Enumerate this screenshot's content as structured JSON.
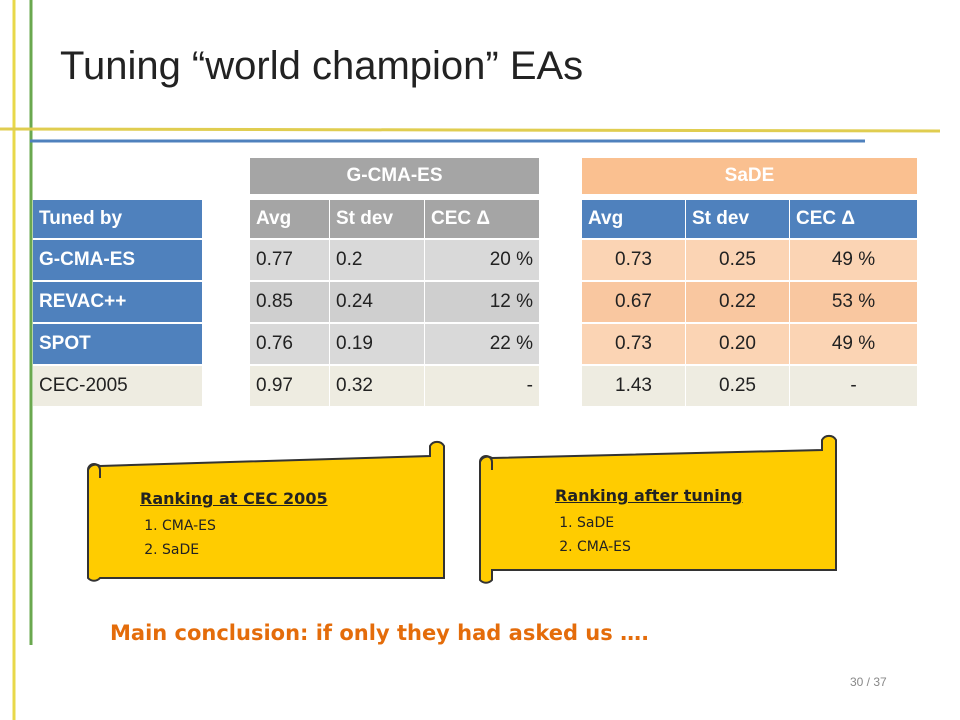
{
  "title": "Tuning “world champion” EAs",
  "tuned_by": {
    "header": "Tuned by",
    "rows": [
      "G-CMA-ES",
      "REVAC++",
      "SPOT",
      "CEC-2005"
    ]
  },
  "tables": [
    {
      "title": "G-CMA-ES",
      "columns": [
        "Avg",
        "St dev",
        "CEC Δ"
      ],
      "rows": [
        [
          "0.77",
          "0.2",
          "20 %"
        ],
        [
          "0.85",
          "0.24",
          "12 %"
        ],
        [
          "0.76",
          "0.19",
          "22 %"
        ],
        [
          "0.97",
          "0.32",
          "-"
        ]
      ]
    },
    {
      "title": "SaDE",
      "columns": [
        "Avg",
        "St dev",
        "CEC  Δ"
      ],
      "rows": [
        [
          "0.73",
          "0.25",
          "49 %"
        ],
        [
          "0.67",
          "0.22",
          "53 %"
        ],
        [
          "0.73",
          "0.20",
          "49 %"
        ],
        [
          "1.43",
          "0.25",
          "-"
        ]
      ]
    }
  ],
  "scrolls": [
    {
      "title": "Ranking at CEC 2005",
      "items": [
        "CMA-ES",
        "SaDE"
      ]
    },
    {
      "title": "Ranking after tuning",
      "items": [
        "SaDE",
        "CMA-ES"
      ]
    }
  ],
  "conclusion": "Main conclusion: if only they had asked us ….",
  "page_number": "30 / 37"
}
